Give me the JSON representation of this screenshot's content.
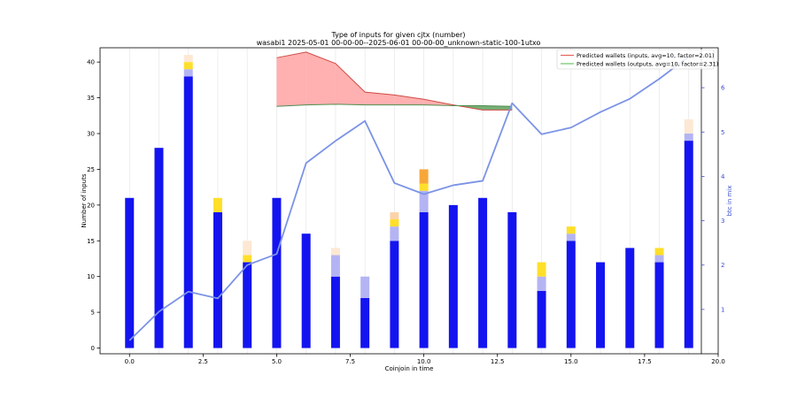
{
  "chart_data": {
    "type": "bar",
    "title": "Type of inputs for given cjtx (number)",
    "subtitle": "wasabi1 2025-05-01 00-00-00--2025-06-01 00-00-00_unknown-static-100-1utxo",
    "xlabel": "Coinjoin in time",
    "ylabel": "Number of inputs",
    "y2label": "btc in mix",
    "xlim": [
      -1,
      20
    ],
    "ylim": [
      -0.8,
      42
    ],
    "y2lim": [
      0,
      6.9
    ],
    "xticks": [
      0,
      2.5,
      5,
      7.5,
      10,
      12.5,
      15,
      17.5,
      20
    ],
    "xtick_labels": [
      "0.0",
      "2.5",
      "5.0",
      "7.5",
      "10.0",
      "12.5",
      "15.0",
      "17.5",
      "20.0"
    ],
    "yticks": [
      0,
      5,
      10,
      15,
      20,
      25,
      30,
      35,
      40
    ],
    "ytick_labels": [
      "0",
      "5",
      "10",
      "15",
      "20",
      "25",
      "30",
      "35",
      "40"
    ],
    "y2ticks": [
      1,
      2,
      3,
      4,
      5,
      6
    ],
    "y2tick_labels": [
      "1",
      "2",
      "3",
      "4",
      "5",
      "6"
    ],
    "x": [
      0,
      1,
      2,
      3,
      4,
      5,
      6,
      7,
      8,
      9,
      10,
      11,
      12,
      13,
      14,
      15,
      16,
      17,
      18,
      19
    ],
    "stack_series": [
      {
        "name": "blue",
        "color": "#1414f0",
        "values": [
          21,
          28,
          38,
          19,
          12,
          21,
          16,
          10,
          7,
          15,
          19,
          20,
          21,
          19,
          8,
          15,
          12,
          14,
          12,
          29
        ]
      },
      {
        "name": "light-blue",
        "color": "#b4b4f4",
        "values": [
          0,
          0,
          1,
          0,
          0,
          0,
          0,
          3,
          3,
          2,
          3,
          0,
          0,
          0,
          2,
          1,
          0,
          0,
          1,
          1
        ]
      },
      {
        "name": "yellow",
        "color": "#ffdf2a",
        "values": [
          0,
          0,
          1,
          2,
          1,
          0,
          0,
          0,
          0,
          1,
          1,
          0,
          0,
          0,
          2,
          1,
          0,
          0,
          1,
          0
        ]
      },
      {
        "name": "orange",
        "color": "#f8a63a",
        "values": [
          0,
          0,
          0,
          0,
          0,
          0,
          0,
          0,
          0,
          0,
          2,
          0,
          0,
          0,
          0,
          0,
          0,
          0,
          0,
          0
        ]
      },
      {
        "name": "peach",
        "color": "#fbd3a8",
        "values": [
          0,
          0,
          0,
          0,
          0,
          0,
          0,
          0,
          0,
          1,
          0,
          0,
          0,
          0,
          0,
          0,
          0,
          0,
          0,
          0
        ]
      },
      {
        "name": "cream",
        "color": "#fde8d4",
        "values": [
          0,
          0,
          1,
          0,
          2,
          0,
          0,
          1,
          0,
          0,
          0,
          0,
          0,
          0,
          0,
          0,
          0,
          0,
          0,
          2
        ]
      }
    ],
    "btc_line": {
      "name": "btc in mix",
      "color": "#7b93e6",
      "axis": "right",
      "x": [
        0,
        1,
        2,
        3,
        4,
        5,
        6,
        7,
        8,
        9,
        10,
        11,
        12,
        13,
        14,
        15,
        16,
        17,
        18,
        19
      ],
      "values": [
        0.3,
        0.95,
        1.4,
        1.25,
        2.0,
        2.25,
        4.3,
        4.8,
        5.25,
        3.85,
        3.6,
        3.8,
        3.9,
        5.65,
        4.95,
        5.1,
        5.45,
        5.75,
        6.2,
        6.7
      ]
    },
    "predicted_series": [
      {
        "name": "Predicted wallets (inputs, avg=10, factor=2.01)",
        "color": "#e8625e",
        "x": [
          5,
          6,
          7,
          8,
          9,
          10,
          11,
          12,
          13
        ],
        "values": [
          40.6,
          41.4,
          39.8,
          35.8,
          35.4,
          34.8,
          34.0,
          33.3,
          33.3
        ]
      },
      {
        "name": "Predicted wallets (outputs, avg=10, factor=2.31)",
        "color": "#6cc46c",
        "x": [
          5,
          6,
          7,
          8,
          9,
          10,
          11,
          12,
          13
        ],
        "values": [
          33.8,
          34.0,
          34.1,
          34.0,
          34.0,
          34.0,
          33.9,
          33.9,
          33.8
        ]
      }
    ],
    "fill_colors": {
      "inputs_above": "#ffb0b0",
      "outputs_above": "#5fa15f"
    },
    "legend_position": "top-right"
  }
}
